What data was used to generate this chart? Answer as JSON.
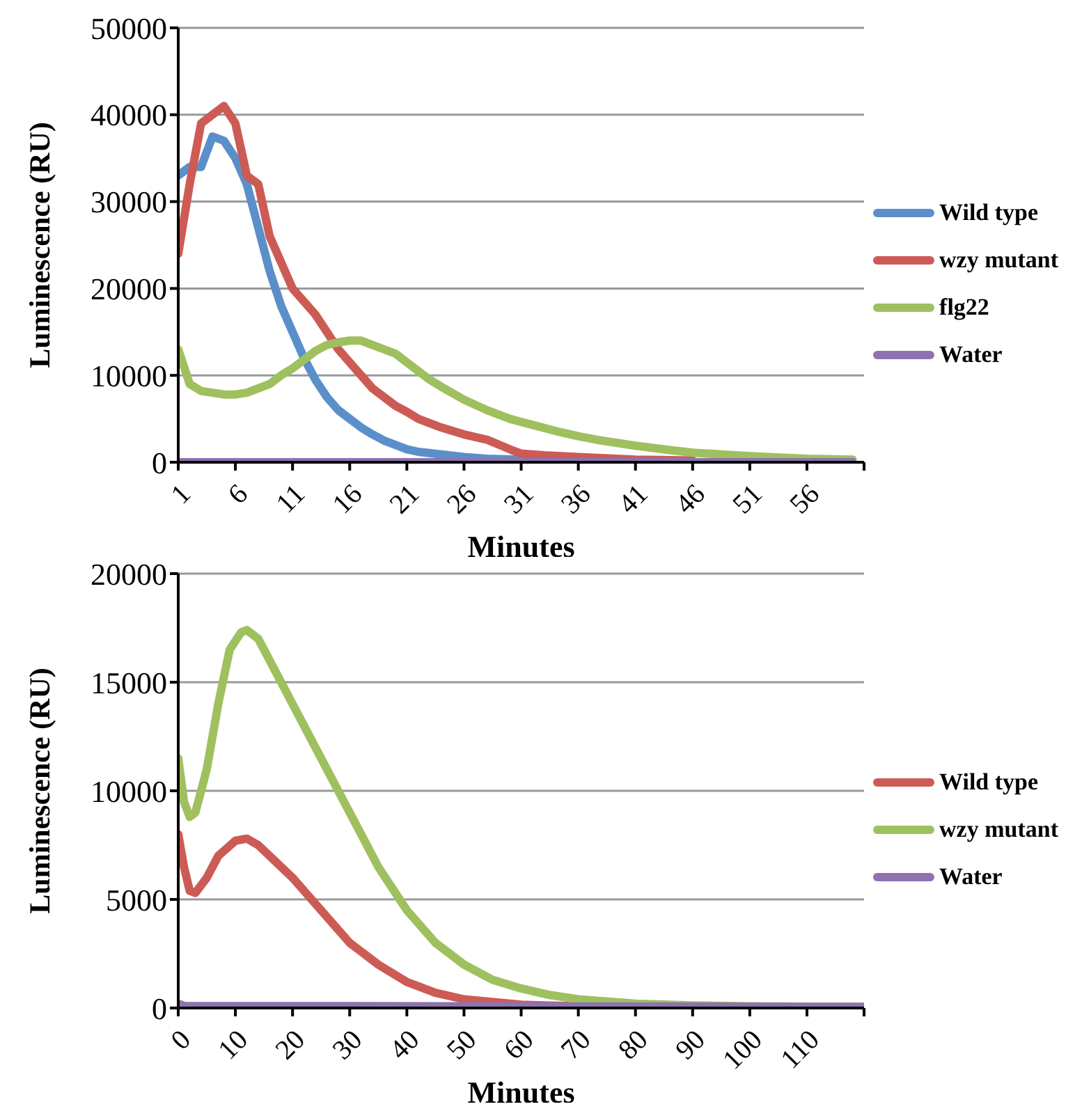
{
  "chart_data": [
    {
      "type": "line",
      "xlabel": "Minutes",
      "ylabel": "Luminescence (RU)",
      "xlim": [
        1,
        61
      ],
      "xticks": [
        1,
        6,
        11,
        16,
        21,
        26,
        31,
        36,
        41,
        46,
        51,
        56,
        {
          "value": 61,
          "label": null
        }
      ],
      "ylim": [
        0,
        50000
      ],
      "yticks": [
        0,
        10000,
        20000,
        30000,
        40000,
        50000
      ],
      "grid": "y",
      "legend": "right",
      "marker": "none",
      "line_style": "solid",
      "series": [
        {
          "name": "Wild type",
          "color": "#5b8fc9",
          "x": [
            1,
            2,
            3,
            4,
            5,
            6,
            7,
            8,
            9,
            10,
            11,
            12,
            13,
            14,
            15,
            16,
            17,
            18,
            19,
            20,
            21,
            22,
            24,
            26,
            28,
            31
          ],
          "values": [
            33000,
            34000,
            34000,
            37500,
            37000,
            35000,
            32000,
            27000,
            22000,
            18000,
            15000,
            12000,
            9500,
            7500,
            6000,
            5000,
            4000,
            3200,
            2500,
            2000,
            1500,
            1200,
            900,
            600,
            400,
            300
          ]
        },
        {
          "name": "wzy mutant",
          "color": "#cd5b55",
          "x": [
            1,
            2,
            3,
            4,
            5,
            6,
            7,
            8,
            9,
            10,
            11,
            12,
            13,
            14,
            15,
            16,
            17,
            18,
            19,
            20,
            21,
            22,
            23,
            24,
            26,
            28,
            30,
            31,
            33,
            36,
            41,
            46
          ],
          "values": [
            24000,
            32000,
            39000,
            40000,
            41000,
            39000,
            33000,
            32000,
            26000,
            23000,
            20000,
            18500,
            17000,
            15000,
            13000,
            11500,
            10000,
            8500,
            7500,
            6500,
            5800,
            5000,
            4500,
            4000,
            3200,
            2600,
            1500,
            1000,
            800,
            600,
            300,
            200
          ]
        },
        {
          "name": "flg22",
          "color": "#9fc05f",
          "x": [
            1,
            2,
            3,
            4,
            5,
            6,
            7,
            8,
            9,
            10,
            11,
            12,
            13,
            14,
            15,
            16,
            17,
            18,
            19,
            20,
            21,
            22,
            23,
            24,
            26,
            28,
            30,
            32,
            34,
            36,
            38,
            41,
            44,
            46,
            51,
            56,
            60
          ],
          "values": [
            13000,
            9000,
            8200,
            8000,
            7800,
            7800,
            8000,
            8500,
            9000,
            10000,
            10800,
            11800,
            12800,
            13500,
            13800,
            14000,
            14000,
            13500,
            13000,
            12500,
            11500,
            10500,
            9500,
            8700,
            7200,
            6000,
            5000,
            4300,
            3600,
            3000,
            2500,
            1900,
            1400,
            1100,
            700,
            400,
            300
          ]
        },
        {
          "name": "Water",
          "color": "#8d73b0",
          "x": [
            1,
            60
          ],
          "values": [
            0,
            0
          ]
        }
      ]
    },
    {
      "type": "line",
      "xlabel": "Minutes",
      "ylabel": "Luminescence (RU)",
      "xlim": [
        0,
        120
      ],
      "xticks": [
        0,
        10,
        20,
        30,
        40,
        50,
        60,
        70,
        80,
        90,
        100,
        110,
        {
          "value": 120,
          "label": null
        }
      ],
      "ylim": [
        0,
        20000
      ],
      "yticks": [
        0,
        5000,
        10000,
        15000,
        20000
      ],
      "grid": "y",
      "legend": "right",
      "marker": "none",
      "line_style": "solid",
      "series": [
        {
          "name": "Wild type",
          "color": "#cd5b55",
          "x": [
            0,
            1,
            2,
            3,
            5,
            7,
            10,
            12,
            14,
            16,
            20,
            25,
            30,
            35,
            40,
            45,
            50,
            60,
            70,
            120
          ],
          "values": [
            8000,
            6500,
            5400,
            5300,
            6000,
            7000,
            7700,
            7800,
            7500,
            7000,
            6000,
            4500,
            3000,
            2000,
            1200,
            700,
            400,
            150,
            80,
            50
          ]
        },
        {
          "name": "wzy mutant",
          "color": "#9fc05f",
          "x": [
            0,
            1,
            2,
            3,
            5,
            7,
            9,
            11,
            12,
            14,
            16,
            20,
            25,
            30,
            35,
            40,
            45,
            50,
            55,
            60,
            65,
            70,
            80,
            90,
            100,
            120
          ],
          "values": [
            11500,
            9500,
            8800,
            9000,
            11000,
            14000,
            16500,
            17300,
            17400,
            17000,
            16000,
            14000,
            11500,
            9000,
            6500,
            4500,
            3000,
            2000,
            1300,
            900,
            600,
            400,
            200,
            120,
            80,
            50
          ]
        },
        {
          "name": "Water",
          "color": "#8d73b0",
          "x": [
            0,
            1,
            120
          ],
          "values": [
            200,
            100,
            50
          ]
        }
      ]
    }
  ]
}
